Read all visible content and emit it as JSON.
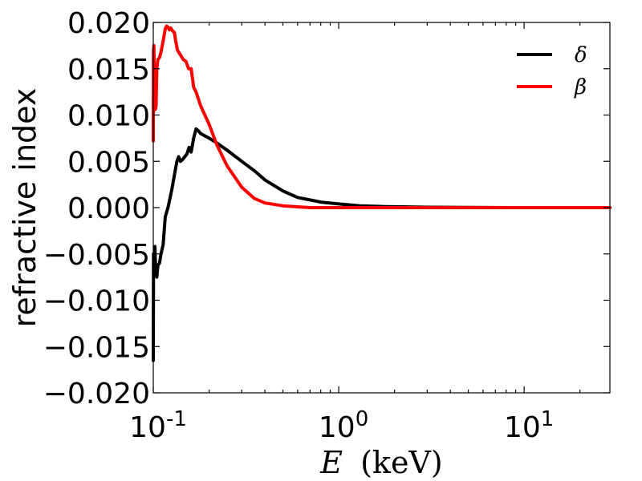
{
  "chart_data": {
    "type": "line",
    "xlabel_symbol": "E",
    "xlabel_unit": "(keV)",
    "ylabel": "refractive index",
    "xscale": "log",
    "xlim": [
      0.1,
      29
    ],
    "ylim": [
      -0.02,
      0.02
    ],
    "grid": false,
    "legend_placement": "top-right",
    "x_tick_labels": [
      {
        "base": "10",
        "exp": "-1",
        "value": 0.1
      },
      {
        "base": "10",
        "exp": "0",
        "value": 1
      },
      {
        "base": "10",
        "exp": "1",
        "value": 10
      }
    ],
    "y_tick_labels": [
      "0.020",
      "0.015",
      "0.010",
      "0.005",
      "0.000",
      "−0.005",
      "−0.010",
      "−0.015",
      "−0.020"
    ],
    "y_tick_values": [
      0.02,
      0.015,
      0.01,
      0.005,
      0.0,
      -0.005,
      -0.01,
      -0.015,
      -0.02
    ],
    "series": [
      {
        "name": "δ",
        "color": "#000000",
        "points": [
          [
            0.1,
            -0.0165
          ],
          [
            0.1003,
            -0.005
          ],
          [
            0.101,
            -0.0063
          ],
          [
            0.102,
            -0.0042
          ],
          [
            0.103,
            -0.0068
          ],
          [
            0.1045,
            -0.0075
          ],
          [
            0.106,
            -0.0062
          ],
          [
            0.108,
            -0.006
          ],
          [
            0.11,
            -0.005
          ],
          [
            0.113,
            -0.004
          ],
          [
            0.116,
            -0.001
          ],
          [
            0.12,
            0.0
          ],
          [
            0.123,
            0.001
          ],
          [
            0.126,
            0.002
          ],
          [
            0.13,
            0.0035
          ],
          [
            0.134,
            0.005
          ],
          [
            0.137,
            0.0055
          ],
          [
            0.14,
            0.005
          ],
          [
            0.144,
            0.0052
          ],
          [
            0.148,
            0.0055
          ],
          [
            0.152,
            0.0058
          ],
          [
            0.156,
            0.0065
          ],
          [
            0.16,
            0.006
          ],
          [
            0.165,
            0.0075
          ],
          [
            0.17,
            0.0085
          ],
          [
            0.175,
            0.0083
          ],
          [
            0.18,
            0.008
          ],
          [
            0.2,
            0.0075
          ],
          [
            0.22,
            0.007
          ],
          [
            0.25,
            0.0062
          ],
          [
            0.3,
            0.005
          ],
          [
            0.35,
            0.004
          ],
          [
            0.4,
            0.003
          ],
          [
            0.5,
            0.0018
          ],
          [
            0.6,
            0.0011
          ],
          [
            0.8,
            0.0006
          ],
          [
            1.0,
            0.0004
          ],
          [
            1.3,
            0.0002
          ],
          [
            1.8,
            0.0001
          ],
          [
            3.0,
            4e-05
          ],
          [
            5.0,
            2e-05
          ],
          [
            10.0,
            0.0
          ],
          [
            29.0,
            0.0
          ]
        ]
      },
      {
        "name": "β",
        "color": "#ff0000",
        "points": [
          [
            0.1,
            0.0072
          ],
          [
            0.1003,
            0.017
          ],
          [
            0.1008,
            0.0175
          ],
          [
            0.1015,
            0.013
          ],
          [
            0.1025,
            0.0106
          ],
          [
            0.1035,
            0.011
          ],
          [
            0.1045,
            0.015
          ],
          [
            0.106,
            0.016
          ],
          [
            0.108,
            0.0162
          ],
          [
            0.11,
            0.0168
          ],
          [
            0.113,
            0.018
          ],
          [
            0.116,
            0.0193
          ],
          [
            0.118,
            0.0196
          ],
          [
            0.12,
            0.0195
          ],
          [
            0.122,
            0.0192
          ],
          [
            0.124,
            0.0194
          ],
          [
            0.127,
            0.0191
          ],
          [
            0.13,
            0.0189
          ],
          [
            0.132,
            0.018
          ],
          [
            0.135,
            0.017
          ],
          [
            0.14,
            0.0165
          ],
          [
            0.145,
            0.016
          ],
          [
            0.15,
            0.0158
          ],
          [
            0.155,
            0.015
          ],
          [
            0.16,
            0.015
          ],
          [
            0.165,
            0.013
          ],
          [
            0.17,
            0.0125
          ],
          [
            0.18,
            0.011
          ],
          [
            0.2,
            0.009
          ],
          [
            0.22,
            0.0068
          ],
          [
            0.25,
            0.0045
          ],
          [
            0.3,
            0.0022
          ],
          [
            0.35,
            0.001
          ],
          [
            0.4,
            0.0005
          ],
          [
            0.5,
            0.0002
          ],
          [
            0.7,
            0.0
          ],
          [
            1.0,
            0.0
          ],
          [
            29.0,
            0.0
          ]
        ]
      }
    ]
  }
}
